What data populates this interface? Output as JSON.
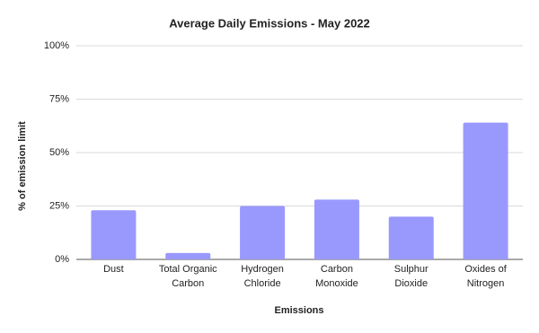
{
  "chart_data": {
    "type": "bar",
    "title": "Average Daily Emissions - May 2022",
    "x_label": "Emissions",
    "y_label": "% of emission limit",
    "categories": [
      "Dust",
      "Total Organic Carbon",
      "Hydrogen Chloride",
      "Carbon Monoxide",
      "Sulphur Dioxide",
      "Oxides of Nitrogen"
    ],
    "values": [
      23,
      3,
      25,
      28,
      20,
      64
    ],
    "color": "#9999fd",
    "ylim": [
      0,
      100
    ],
    "yticks": [
      {
        "value": 0,
        "label": "0%"
      },
      {
        "value": 25,
        "label": "25%"
      },
      {
        "value": 50,
        "label": "50%"
      },
      {
        "value": 75,
        "label": "75%"
      },
      {
        "value": 100,
        "label": "100%"
      }
    ],
    "grid": true
  }
}
